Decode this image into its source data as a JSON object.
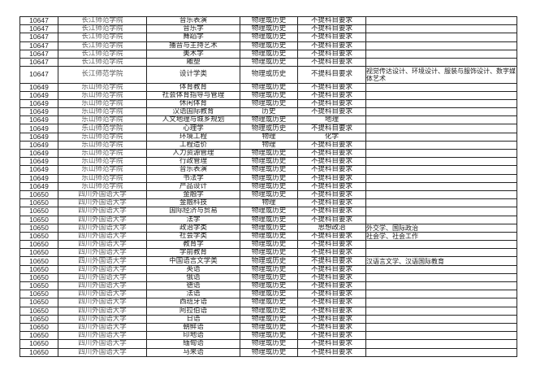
{
  "rows": [
    {
      "code": "10647",
      "school": "长江师范学院",
      "major": "音乐表演",
      "first": "物理或历史",
      "second": "不提科目要求",
      "note": ""
    },
    {
      "code": "10647",
      "school": "长江师范学院",
      "major": "音乐学",
      "first": "物理或历史",
      "second": "不提科目要求",
      "note": ""
    },
    {
      "code": "10647",
      "school": "长江师范学院",
      "major": "舞蹈学",
      "first": "物理或历史",
      "second": "不提科目要求",
      "note": ""
    },
    {
      "code": "10647",
      "school": "长江师范学院",
      "major": "播音与主持艺术",
      "first": "物理或历史",
      "second": "不提科目要求",
      "note": ""
    },
    {
      "code": "10647",
      "school": "长江师范学院",
      "major": "美术学",
      "first": "物理或历史",
      "second": "不提科目要求",
      "note": ""
    },
    {
      "code": "10647",
      "school": "长江师范学院",
      "major": "雕塑",
      "first": "物理或历史",
      "second": "不提科目要求",
      "note": ""
    },
    {
      "code": "10647",
      "school": "长江师范学院",
      "major": "设计学类",
      "first": "物理或历史",
      "second": "不提科目要求",
      "note": "视觉传达设计、环境设计、服装与服饰设计、数字媒体艺术"
    },
    {
      "code": "10649",
      "school": "乐山师范学院",
      "major": "体育教育",
      "first": "物理或历史",
      "second": "不提科目要求",
      "note": ""
    },
    {
      "code": "10649",
      "school": "乐山师范学院",
      "major": "社会体育指导与管理",
      "first": "物理或历史",
      "second": "不提科目要求",
      "note": ""
    },
    {
      "code": "10649",
      "school": "乐山师范学院",
      "major": "休闲体育",
      "first": "物理或历史",
      "second": "不提科目要求",
      "note": ""
    },
    {
      "code": "10649",
      "school": "乐山师范学院",
      "major": "汉语国际教育",
      "first": "历史",
      "second": "不提科目要求",
      "note": ""
    },
    {
      "code": "10649",
      "school": "乐山师范学院",
      "major": "人文地理与城乡规划",
      "first": "物理或历史",
      "second": "地理",
      "note": ""
    },
    {
      "code": "10649",
      "school": "乐山师范学院",
      "major": "心理学",
      "first": "物理或历史",
      "second": "不提科目要求",
      "note": ""
    },
    {
      "code": "10649",
      "school": "乐山师范学院",
      "major": "环境工程",
      "first": "物理",
      "second": "化学",
      "note": ""
    },
    {
      "code": "10649",
      "school": "乐山师范学院",
      "major": "工程造价",
      "first": "物理",
      "second": "不提科目要求",
      "note": ""
    },
    {
      "code": "10649",
      "school": "乐山师范学院",
      "major": "人力资源管理",
      "first": "物理或历史",
      "second": "不提科目要求",
      "note": ""
    },
    {
      "code": "10649",
      "school": "乐山师范学院",
      "major": "行政管理",
      "first": "物理或历史",
      "second": "不提科目要求",
      "note": ""
    },
    {
      "code": "10649",
      "school": "乐山师范学院",
      "major": "音乐表演",
      "first": "物理或历史",
      "second": "不提科目要求",
      "note": ""
    },
    {
      "code": "10649",
      "school": "乐山师范学院",
      "major": "书法学",
      "first": "物理或历史",
      "second": "不提科目要求",
      "note": ""
    },
    {
      "code": "10649",
      "school": "乐山师范学院",
      "major": "产品设计",
      "first": "物理或历史",
      "second": "不提科目要求",
      "note": ""
    },
    {
      "code": "10650",
      "school": "四川外国语大学",
      "major": "金融学",
      "first": "物理或历史",
      "second": "不提科目要求",
      "note": ""
    },
    {
      "code": "10650",
      "school": "四川外国语大学",
      "major": "金融科技",
      "first": "物理",
      "second": "不提科目要求",
      "note": ""
    },
    {
      "code": "10650",
      "school": "四川外国语大学",
      "major": "国际经济与贸易",
      "first": "物理或历史",
      "second": "不提科目要求",
      "note": ""
    },
    {
      "code": "10650",
      "school": "四川外国语大学",
      "major": "法学",
      "first": "物理或历史",
      "second": "不提科目要求",
      "note": ""
    },
    {
      "code": "10650",
      "school": "四川外国语大学",
      "major": "政治学类",
      "first": "物理或历史",
      "second": "思想政治",
      "note": "外交学、国际政治"
    },
    {
      "code": "10650",
      "school": "四川外国语大学",
      "major": "社会学类",
      "first": "物理或历史",
      "second": "不提科目要求",
      "note": "社会学、社会工作"
    },
    {
      "code": "10650",
      "school": "四川外国语大学",
      "major": "教育学",
      "first": "物理或历史",
      "second": "不提科目要求",
      "note": ""
    },
    {
      "code": "10650",
      "school": "四川外国语大学",
      "major": "学前教育",
      "first": "物理或历史",
      "second": "不提科目要求",
      "note": ""
    },
    {
      "code": "10650",
      "school": "四川外国语大学",
      "major": "中国语言文学类",
      "first": "物理或历史",
      "second": "不提科目要求",
      "note": "汉语言文学、汉语国际教育"
    },
    {
      "code": "10650",
      "school": "四川外国语大学",
      "major": "英语",
      "first": "物理或历史",
      "second": "不提科目要求",
      "note": ""
    },
    {
      "code": "10650",
      "school": "四川外国语大学",
      "major": "俄语",
      "first": "物理或历史",
      "second": "不提科目要求",
      "note": ""
    },
    {
      "code": "10650",
      "school": "四川外国语大学",
      "major": "德语",
      "first": "物理或历史",
      "second": "不提科目要求",
      "note": ""
    },
    {
      "code": "10650",
      "school": "四川外国语大学",
      "major": "法语",
      "first": "物理或历史",
      "second": "不提科目要求",
      "note": ""
    },
    {
      "code": "10650",
      "school": "四川外国语大学",
      "major": "西班牙语",
      "first": "物理或历史",
      "second": "不提科目要求",
      "note": ""
    },
    {
      "code": "10650",
      "school": "四川外国语大学",
      "major": "阿拉伯语",
      "first": "物理或历史",
      "second": "不提科目要求",
      "note": ""
    },
    {
      "code": "10650",
      "school": "四川外国语大学",
      "major": "日语",
      "first": "物理或历史",
      "second": "不提科目要求",
      "note": ""
    },
    {
      "code": "10650",
      "school": "四川外国语大学",
      "major": "朝鲜语",
      "first": "物理或历史",
      "second": "不提科目要求",
      "note": ""
    },
    {
      "code": "10650",
      "school": "四川外国语大学",
      "major": "印地语",
      "first": "物理或历史",
      "second": "不提科目要求",
      "note": ""
    },
    {
      "code": "10650",
      "school": "四川外国语大学",
      "major": "缅甸语",
      "first": "物理或历史",
      "second": "不提科目要求",
      "note": ""
    },
    {
      "code": "10650",
      "school": "四川外国语大学",
      "major": "马来语",
      "first": "物理或历史",
      "second": "不提科目要求",
      "note": ""
    }
  ]
}
